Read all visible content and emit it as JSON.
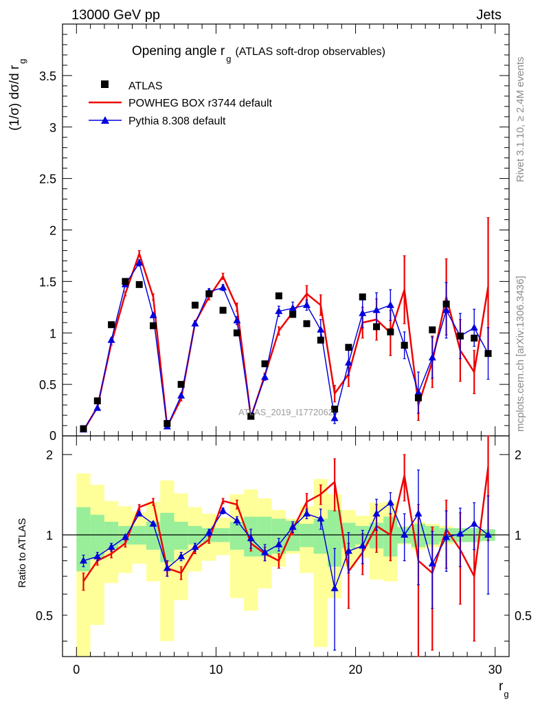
{
  "header": {
    "left": "13000 GeV pp",
    "right": "Jets"
  },
  "side_labels": {
    "rivet": "Rivet 3.1.10, ≥ 2.4M events",
    "mcplots": "mcplots.cern.ch [arXiv:1306.3436]"
  },
  "chart_data": {
    "type": "scatter",
    "title_main": "Opening angle r",
    "title_sub": "g",
    "title_rest": "(ATLAS soft-drop observables)",
    "analysis_watermark": "ATLAS_2019_I1772062",
    "xlabel_main": "r",
    "xlabel_sub": "g",
    "ylabel_top": "(1/σ) dσ/d r",
    "ylabel_top_sub": "g",
    "ylabel_bottom": "Ratio to ATLAS",
    "xlim": [
      -1,
      31
    ],
    "ylim_top": [
      0,
      4
    ],
    "ylim_bottom": [
      0.35,
      2.35
    ],
    "x_ticks": [
      0,
      10,
      20,
      30
    ],
    "x_tick_labels": [
      "0",
      "10",
      "20",
      "30"
    ],
    "y_ticks_top": [
      0.5,
      1,
      1.5,
      2,
      2.5,
      3,
      3.5
    ],
    "y_tick_labels_top": [
      "0.5",
      "1",
      "1.5",
      "2",
      "2.5",
      "3",
      "3.5"
    ],
    "y_ticks_bottom": [
      0.5,
      1,
      2
    ],
    "y_tick_labels_bottom": [
      "0.5",
      "1",
      "2"
    ],
    "ratio_right_labels": [
      "0.5",
      "1",
      "2"
    ],
    "x": [
      0.5,
      1.5,
      2.5,
      3.5,
      4.5,
      5.5,
      6.5,
      7.5,
      8.5,
      9.5,
      10.5,
      11.5,
      12.5,
      13.5,
      14.5,
      15.5,
      16.5,
      17.5,
      18.5,
      19.5,
      20.5,
      21.5,
      22.5,
      23.5,
      24.5,
      25.5,
      26.5,
      27.5,
      28.5,
      29.5
    ],
    "legend": [
      {
        "name": "ATLAS",
        "color": "#000000",
        "marker": "square"
      },
      {
        "name": "POWHEG BOX r3744 default",
        "color": "#ee0000",
        "marker": "line"
      },
      {
        "name": "Pythia 8.308 default",
        "color": "#0000dd",
        "marker": "triangle"
      }
    ],
    "series": [
      {
        "name": "ATLAS",
        "values": [
          0.07,
          0.34,
          1.08,
          1.5,
          1.47,
          1.07,
          0.12,
          0.5,
          1.27,
          1.38,
          1.22,
          1.0,
          0.19,
          0.7,
          1.36,
          1.18,
          1.09,
          0.93,
          0.26,
          0.86,
          1.35,
          1.06,
          1.01,
          0.88,
          0.37,
          1.03,
          1.28,
          0.97,
          0.95,
          0.8
        ]
      },
      {
        "name": "POWHEG BOX r3744 default",
        "values": [
          0.05,
          0.28,
          0.9,
          1.38,
          1.77,
          1.35,
          0.09,
          0.36,
          1.1,
          1.35,
          1.55,
          1.25,
          0.18,
          0.59,
          1.02,
          1.2,
          1.38,
          1.27,
          0.41,
          0.6,
          1.1,
          1.13,
          1.0,
          1.42,
          0.3,
          0.72,
          1.35,
          0.83,
          0.62,
          1.45
        ],
        "errors": [
          0.01,
          0.01,
          0.02,
          0.02,
          0.03,
          0.03,
          0.01,
          0.02,
          0.02,
          0.03,
          0.03,
          0.04,
          0.01,
          0.02,
          0.04,
          0.05,
          0.08,
          0.1,
          0.08,
          0.12,
          0.15,
          0.2,
          0.22,
          0.33,
          0.15,
          0.25,
          0.37,
          0.3,
          0.21,
          0.67
        ]
      },
      {
        "name": "Pythia 8.308 default",
        "values": [
          0.06,
          0.27,
          0.93,
          1.47,
          1.68,
          1.17,
          0.09,
          0.39,
          1.09,
          1.4,
          1.44,
          1.12,
          0.19,
          0.57,
          1.21,
          1.24,
          1.27,
          1.03,
          0.17,
          0.71,
          1.19,
          1.22,
          1.27,
          0.88,
          0.42,
          0.76,
          1.22,
          0.97,
          1.05,
          0.8
        ],
        "errors": [
          0.01,
          0.01,
          0.02,
          0.02,
          0.03,
          0.02,
          0.01,
          0.02,
          0.02,
          0.03,
          0.03,
          0.04,
          0.02,
          0.03,
          0.05,
          0.06,
          0.05,
          0.1,
          0.05,
          0.12,
          0.14,
          0.17,
          0.15,
          0.13,
          0.2,
          0.2,
          0.27,
          0.22,
          0.18,
          0.25
        ]
      }
    ],
    "ratio_series": [
      {
        "name": "POWHEG BOX r3744 default",
        "values": [
          0.67,
          0.8,
          0.85,
          0.93,
          1.27,
          1.33,
          0.75,
          0.72,
          0.88,
          0.96,
          1.34,
          1.3,
          0.93,
          0.85,
          0.8,
          1.05,
          1.33,
          1.42,
          1.58,
          0.73,
          0.86,
          1.08,
          1.0,
          1.67,
          0.8,
          0.72,
          1.05,
          0.88,
          0.7,
          1.8
        ],
        "errors": [
          0.05,
          0.03,
          0.03,
          0.03,
          0.03,
          0.04,
          0.05,
          0.04,
          0.03,
          0.03,
          0.03,
          0.05,
          0.06,
          0.05,
          0.05,
          0.05,
          0.1,
          0.12,
          0.35,
          0.2,
          0.15,
          0.22,
          0.2,
          0.33,
          0.5,
          0.35,
          0.3,
          0.33,
          0.3,
          0.85
        ]
      },
      {
        "name": "Pythia 8.308 default",
        "values": [
          0.8,
          0.83,
          0.9,
          0.98,
          1.2,
          1.1,
          0.75,
          0.83,
          0.9,
          1.02,
          1.23,
          1.13,
          0.97,
          0.86,
          0.92,
          1.07,
          1.2,
          1.15,
          0.63,
          0.87,
          0.91,
          1.2,
          1.32,
          1.0,
          1.2,
          0.78,
          0.98,
          1.01,
          1.1,
          1.0
        ],
        "errors": [
          0.04,
          0.03,
          0.03,
          0.02,
          0.02,
          0.02,
          0.05,
          0.03,
          0.03,
          0.03,
          0.03,
          0.04,
          0.08,
          0.06,
          0.05,
          0.05,
          0.05,
          0.1,
          0.26,
          0.15,
          0.13,
          0.16,
          0.12,
          0.2,
          0.55,
          0.25,
          0.25,
          0.25,
          0.22,
          0.4
        ]
      }
    ],
    "data_band_inner": [
      0.27,
      0.19,
      0.12,
      0.08,
      0.08,
      0.12,
      0.21,
      0.12,
      0.08,
      0.06,
      0.06,
      0.12,
      0.17,
      0.17,
      0.15,
      0.13,
      0.1,
      0.15,
      0.24,
      0.11,
      0.08,
      0.11,
      0.17,
      0.07,
      0.1,
      0.08,
      0.06,
      0.06,
      0.06,
      0.05
    ],
    "data_band_outer": [
      0.7,
      0.54,
      0.34,
      0.28,
      0.22,
      0.33,
      0.6,
      0.43,
      0.27,
      0.2,
      0.16,
      0.42,
      0.48,
      0.37,
      0.24,
      0.15,
      0.28,
      0.62,
      0.42,
      0.24,
      0.18,
      0.32,
      0.33,
      0.08,
      0.12,
      0.1,
      0.08,
      0.05,
      0.05,
      0.04
    ],
    "colors": {
      "data": "#000000",
      "powheg": "#ee0000",
      "pythia": "#0000dd",
      "band_inner": "#99ee99",
      "band_outer": "#ffff99",
      "side_text": "#8a8a8a"
    }
  }
}
